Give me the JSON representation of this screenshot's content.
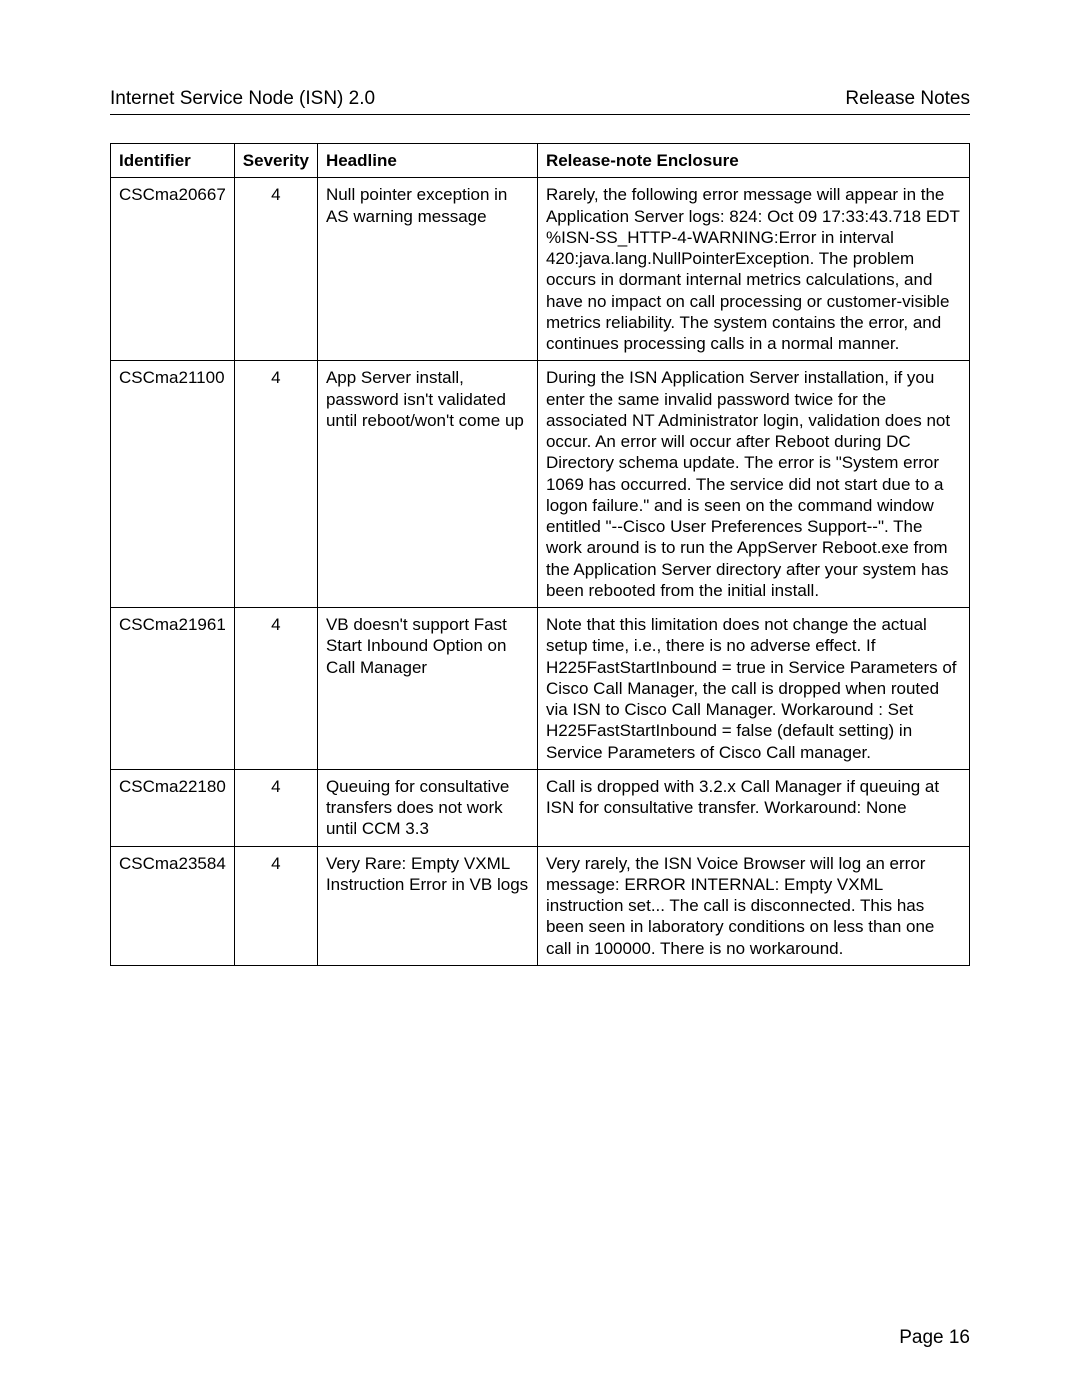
{
  "header": {
    "left": "Internet Service Node (ISN) 2.0",
    "right": "Release Notes"
  },
  "table": {
    "columns": {
      "identifier": "Identifier",
      "severity": "Severity",
      "headline": "Headline",
      "enclosure": "Release-note Enclosure"
    },
    "rows": [
      {
        "identifier": "CSCma20667",
        "severity": "4",
        "headline": "Null pointer exception in AS warning message",
        "enclosure": "Rarely, the following error message will appear in the Application Server logs: 824: Oct 09 17:33:43.718 EDT %ISN-SS_HTTP-4-WARNING:Error in interval 420:java.lang.NullPointerException. The problem occurs in dormant internal metrics calculations, and have no impact on call processing or customer-visible metrics reliability. The system contains the error, and continues processing calls in a normal manner."
      },
      {
        "identifier": "CSCma21100",
        "severity": "4",
        "headline": "App Server install, password isn't validated until reboot/won't come up",
        "enclosure": "During the ISN Application Server installation, if you enter the same invalid password twice for the associated NT Administrator login, validation does not occur. An error will occur after Reboot during DC Directory schema update. The error is \"System error 1069 has occurred. The service did not start due to a logon failure.\" and is seen on the command window entitled \"--Cisco User Preferences Support--\". The work around is to run the AppServer Reboot.exe from the Application Server directory after your system has been rebooted from the initial install."
      },
      {
        "identifier": "CSCma21961",
        "severity": "4",
        "headline": "VB doesn't support Fast Start Inbound Option on Call Manager",
        "enclosure": "Note that this limitation does not change the actual setup time, i.e., there is no adverse effect. If H225FastStartInbound = true in Service Parameters of Cisco Call Manager, the call is dropped when routed via ISN to Cisco Call Manager.\nWorkaround : Set H225FastStartInbound = false (default setting) in Service Parameters of Cisco Call manager."
      },
      {
        "identifier": "CSCma22180",
        "severity": "4",
        "headline": "Queuing for consultative transfers does not work until CCM 3.3",
        "enclosure": "Call is dropped with 3.2.x Call Manager if queuing at ISN for consultative transfer. Workaround: None"
      },
      {
        "identifier": "CSCma23584",
        "severity": "4",
        "headline": "Very Rare: Empty VXML Instruction Error in VB logs",
        "enclosure": "Very rarely, the ISN Voice Browser will log an error message: ERROR INTERNAL: Empty VXML instruction set... The call is disconnected. This has been seen in laboratory conditions on less than one call in 100000. There is no workaround."
      }
    ]
  },
  "footer": {
    "page_label": "Page 16"
  }
}
